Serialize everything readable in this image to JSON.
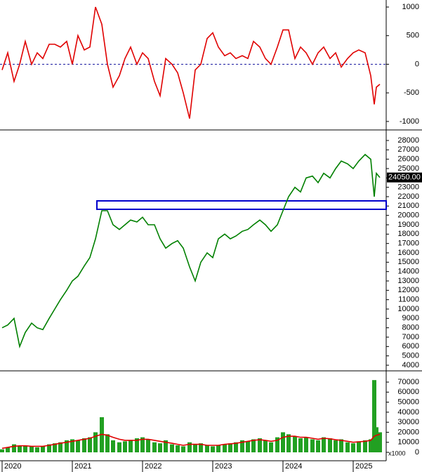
{
  "chart_data": [
    {
      "type": "line",
      "x": [
        2020.0,
        2020.08,
        2020.17,
        2020.25,
        2020.33,
        2020.42,
        2020.5,
        2020.58,
        2020.67,
        2020.75,
        2020.83,
        2020.92,
        2021.0,
        2021.08,
        2021.17,
        2021.25,
        2021.33,
        2021.42,
        2021.5,
        2021.58,
        2021.67,
        2021.75,
        2021.83,
        2021.92,
        2022.0,
        2022.08,
        2022.17,
        2022.25,
        2022.33,
        2022.42,
        2022.5,
        2022.58,
        2022.67,
        2022.75,
        2022.83,
        2022.92,
        2023.0,
        2023.08,
        2023.17,
        2023.25,
        2023.33,
        2023.42,
        2023.5,
        2023.58,
        2023.67,
        2023.75,
        2023.83,
        2023.92,
        2024.0,
        2024.08,
        2024.17,
        2024.25,
        2024.33,
        2024.42,
        2024.5,
        2024.58,
        2024.67,
        2024.75,
        2024.83,
        2024.92,
        2025.0,
        2025.08,
        2025.17,
        2025.25,
        2025.3,
        2025.33,
        2025.38
      ],
      "xlim": [
        2019.97,
        2025.47
      ],
      "series": [
        {
          "color": "#e00000",
          "values": [
            -100,
            200,
            -300,
            0,
            400,
            0,
            200,
            100,
            350,
            350,
            300,
            400,
            0,
            500,
            250,
            300,
            1000,
            700,
            0,
            -400,
            -200,
            100,
            300,
            0,
            200,
            100,
            -300,
            -550,
            100,
            0,
            -150,
            -500,
            -950,
            -100,
            0,
            450,
            550,
            300,
            150,
            200,
            100,
            150,
            100,
            400,
            300,
            100,
            0,
            300,
            600,
            600,
            100,
            300,
            200,
            0,
            200,
            300,
            100,
            200,
            -50,
            100,
            200,
            250,
            200,
            -200,
            -700,
            -400,
            -350
          ]
        }
      ],
      "ylim": [
        -1136,
        1123
      ],
      "yticks": [
        -1000,
        -500,
        0,
        500,
        1000
      ],
      "hline": 0,
      "hline_color": "#1a1aa0"
    },
    {
      "type": "line",
      "x": [
        2020.0,
        2020.08,
        2020.17,
        2020.25,
        2020.33,
        2020.42,
        2020.5,
        2020.58,
        2020.67,
        2020.75,
        2020.83,
        2020.92,
        2021.0,
        2021.08,
        2021.17,
        2021.25,
        2021.33,
        2021.42,
        2021.5,
        2021.58,
        2021.67,
        2021.75,
        2021.83,
        2021.92,
        2022.0,
        2022.08,
        2022.17,
        2022.25,
        2022.33,
        2022.42,
        2022.5,
        2022.58,
        2022.67,
        2022.75,
        2022.83,
        2022.92,
        2023.0,
        2023.08,
        2023.17,
        2023.25,
        2023.33,
        2023.42,
        2023.5,
        2023.58,
        2023.67,
        2023.75,
        2023.83,
        2023.92,
        2024.0,
        2024.08,
        2024.17,
        2024.25,
        2024.33,
        2024.42,
        2024.5,
        2024.58,
        2024.67,
        2024.75,
        2024.83,
        2024.92,
        2025.0,
        2025.08,
        2025.17,
        2025.25,
        2025.3,
        2025.33,
        2025.38
      ],
      "xlim": [
        2019.97,
        2025.47
      ],
      "series": [
        {
          "color": "#008000",
          "values": [
            8000,
            8300,
            9000,
            6000,
            7500,
            8500,
            8000,
            7800,
            9000,
            10000,
            11000,
            12000,
            13000,
            13500,
            14600,
            15500,
            17500,
            20500,
            20500,
            19000,
            18500,
            19000,
            19500,
            19300,
            19800,
            19000,
            19000,
            17500,
            16500,
            17000,
            17300,
            16500,
            14500,
            13000,
            15000,
            16000,
            15500,
            17500,
            18000,
            17500,
            17800,
            18300,
            18500,
            19000,
            19500,
            19000,
            18300,
            19000,
            20500,
            22000,
            23000,
            22500,
            24000,
            24200,
            23500,
            24500,
            24000,
            25000,
            25800,
            25500,
            25000,
            25800,
            26500,
            26000,
            22000,
            24500,
            24050
          ]
        }
      ],
      "ylim": [
        3475,
        29050
      ],
      "yticks": [
        4000,
        5000,
        6000,
        7000,
        8000,
        9000,
        10000,
        11000,
        12000,
        13000,
        14000,
        15000,
        16000,
        17000,
        18000,
        19000,
        20000,
        21000,
        22000,
        23000,
        24000,
        25000,
        26000,
        27000,
        28000
      ],
      "last_value": 24050,
      "last_label": "24050.00",
      "zone": {
        "x": 2021.35,
        "ylim": [
          20650,
          21550
        ],
        "color": "#0000cc"
      }
    },
    {
      "type": "bar",
      "x": [
        2020.0,
        2020.08,
        2020.17,
        2020.25,
        2020.33,
        2020.42,
        2020.5,
        2020.58,
        2020.67,
        2020.75,
        2020.83,
        2020.92,
        2021.0,
        2021.08,
        2021.17,
        2021.25,
        2021.33,
        2021.42,
        2021.5,
        2021.58,
        2021.67,
        2021.75,
        2021.83,
        2021.92,
        2022.0,
        2022.08,
        2022.17,
        2022.25,
        2022.33,
        2022.42,
        2022.5,
        2022.58,
        2022.67,
        2022.75,
        2022.83,
        2022.92,
        2023.0,
        2023.08,
        2023.17,
        2023.25,
        2023.33,
        2023.42,
        2023.5,
        2023.58,
        2023.67,
        2023.75,
        2023.83,
        2023.92,
        2024.0,
        2024.08,
        2024.17,
        2024.25,
        2024.33,
        2024.42,
        2024.5,
        2024.58,
        2024.67,
        2024.75,
        2024.83,
        2024.92,
        2025.0,
        2025.08,
        2025.17,
        2025.25,
        2025.3,
        2025.33,
        2025.38
      ],
      "xlim": [
        2019.97,
        2025.47
      ],
      "xticks": [
        2020,
        2021,
        2022,
        2023,
        2024,
        2025
      ],
      "series": [
        {
          "type": "bar",
          "color": "#22a022",
          "values": [
            3000,
            5000,
            8000,
            6000,
            7000,
            6000,
            5000,
            6000,
            8000,
            9000,
            10000,
            12000,
            13000,
            12000,
            14000,
            15000,
            20000,
            35000,
            18000,
            12000,
            10000,
            11000,
            12000,
            14000,
            15000,
            13000,
            10000,
            9000,
            12000,
            8000,
            7000,
            6000,
            10000,
            8000,
            9000,
            7000,
            6000,
            7000,
            8000,
            9000,
            10000,
            12000,
            11000,
            13000,
            14000,
            12000,
            10000,
            15000,
            20000,
            18000,
            16000,
            14000,
            15000,
            13000,
            12000,
            15000,
            14000,
            12000,
            13000,
            10000,
            9000,
            11000,
            12000,
            13000,
            72000,
            25000,
            20000
          ]
        },
        {
          "type": "line",
          "color": "#e00000",
          "values": [
            4000,
            5000,
            6000,
            6500,
            6500,
            6000,
            6000,
            6000,
            7000,
            8000,
            9000,
            10000,
            11000,
            12000,
            13000,
            14000,
            16000,
            18000,
            17000,
            15000,
            13000,
            12000,
            12000,
            12000,
            13000,
            13000,
            12000,
            11000,
            10000,
            9000,
            8000,
            7000,
            8000,
            8000,
            8000,
            7000,
            7000,
            7000,
            8000,
            8500,
            9000,
            10000,
            11000,
            12000,
            12500,
            12000,
            11000,
            12000,
            15000,
            16000,
            16000,
            15000,
            15000,
            14000,
            13000,
            14000,
            13500,
            12500,
            12000,
            11000,
            10000,
            10500,
            11000,
            12000,
            16000,
            17000,
            18000
          ]
        }
      ],
      "ylim": [
        -7700,
        80500
      ],
      "yticks": [
        0,
        10000,
        20000,
        30000,
        40000,
        50000,
        60000,
        70000
      ],
      "unit_label": "x1000"
    }
  ]
}
